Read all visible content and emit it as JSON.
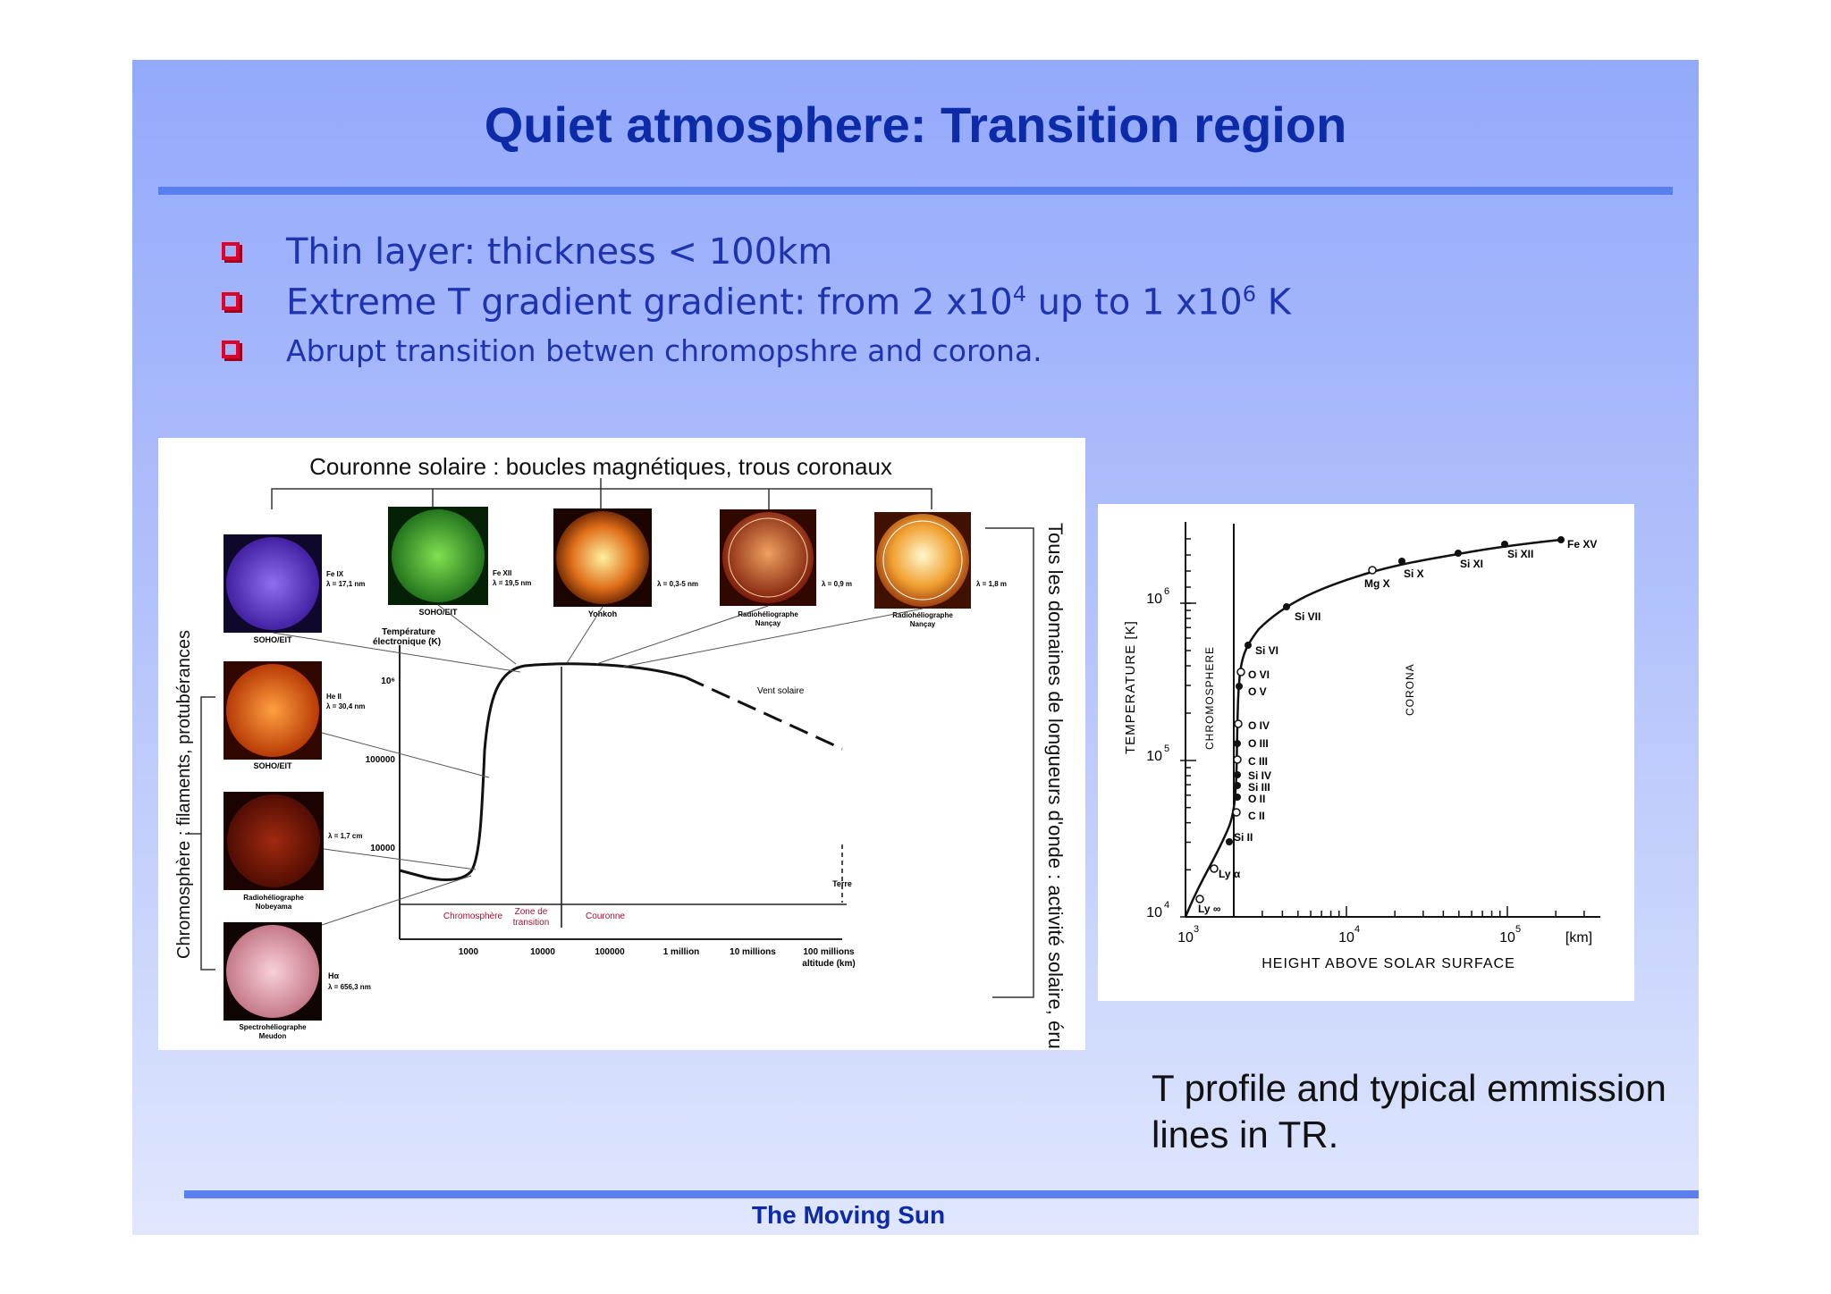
{
  "slide": {
    "title": "Quiet atmosphere: Transition region",
    "footer": "The Moving Sun",
    "bullets": [
      {
        "pre": "Thin layer: thickness < 100km"
      },
      {
        "pre": "Extreme T gradient gradient: from 2 x10",
        "sup1": "4",
        "mid": " up to 1 x10",
        "sup2": "6",
        "post": " K"
      },
      {
        "pre": "Abrupt transition betwen chromopshre and corona."
      }
    ],
    "caption_line1": "T profile and typical emmission",
    "caption_line2": "lines in TR."
  },
  "left_figure": {
    "title": "Couronne solaire : boucles magnétiques, trous coronaux",
    "right_label": "Tous les domaines de longueurs d'onde : activité solaire, éruptions",
    "left_label": "Chromosphère : filaments, protubérances",
    "temp_label_1": "Température",
    "temp_label_2": "électronique (K)",
    "images": [
      {
        "inst": "SOHO/EIT",
        "line": "Fe IX",
        "wl": "λ = 17,1 nm",
        "color": "#6a3fc8"
      },
      {
        "inst": "SOHO/EIT",
        "line": "Fe XII",
        "wl": "λ = 19,5 nm",
        "color": "#2fa830"
      },
      {
        "inst": "Yohkoh",
        "wl": "λ = 0,3-5 nm",
        "color": "#e0701a"
      },
      {
        "inst1": "Radiohéliographe",
        "inst2": "Nançay",
        "wl": "λ = 0,9 m",
        "color": "#c0401a"
      },
      {
        "inst1": "Radiohéliographe",
        "inst2": "Nançay",
        "wl": "λ = 1,8 m",
        "color": "#f0a030"
      },
      {
        "inst": "SOHO/EIT",
        "line": "He II",
        "wl": "λ = 30,4 nm",
        "color": "#e0600a"
      },
      {
        "inst1": "Radiohéliographe",
        "inst2": "Nobeyama",
        "wl": "λ = 1,7 cm",
        "color": "#7a1a08"
      },
      {
        "inst1": "Spectrohéliographe",
        "inst2": "Meudon",
        "line": "Hα",
        "wl": "λ = 656,3 nm",
        "color": "#e8b0b8"
      }
    ],
    "y_ticks": [
      "10⁶",
      "100000",
      "10000"
    ],
    "x_ticks": [
      "1000",
      "10000",
      "100000",
      "1 million",
      "10 millions",
      "100 millions"
    ],
    "x_unit": "altitude (km)",
    "regions": [
      "Chromosphère",
      "Zone de",
      "transition",
      "Couronne"
    ],
    "vent": "Vent solaire",
    "terre": "Terre"
  },
  "right_figure": {
    "ylabel": "TEMPERATURE [K]",
    "xlabel": "HEIGHT ABOVE SOLAR SURFACE",
    "x_unit": "[km]",
    "y_ticks": [
      {
        "base": "10",
        "exp": "6"
      },
      {
        "base": "10",
        "exp": "5"
      },
      {
        "base": "10",
        "exp": "4"
      }
    ],
    "x_ticks": [
      {
        "base": "10",
        "exp": "3"
      },
      {
        "base": "10",
        "exp": "4"
      },
      {
        "base": "10",
        "exp": "5"
      }
    ],
    "chromosphere": "CHROMOSPHERE",
    "corona": "CORONA",
    "lines": [
      "Fe XV",
      "Si XII",
      "Si XI",
      "Si X",
      "Mg X",
      "Si VII",
      "Si VI",
      "O VI",
      "O V",
      "O IV",
      "O III",
      "C III",
      "Si IV",
      "Si III",
      "O II",
      "C II",
      "Si II",
      "Ly α",
      "Ly ∞"
    ]
  }
}
